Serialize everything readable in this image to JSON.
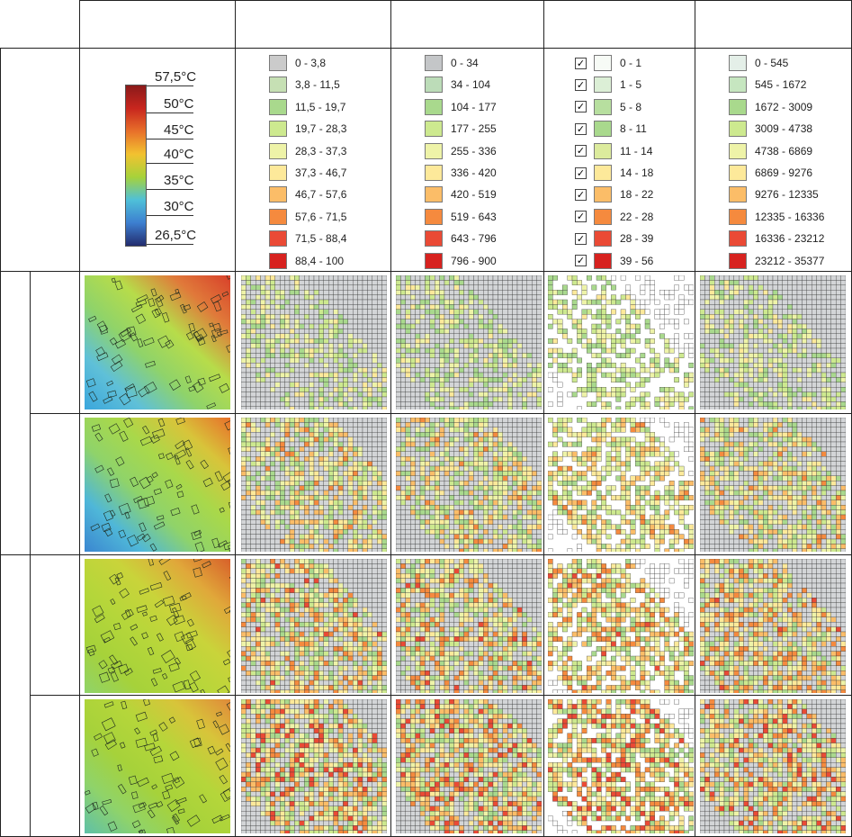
{
  "colorbar": {
    "labels": [
      "57,5°C",
      "50°C",
      "45°C",
      "40°C",
      "35°C",
      "30°C",
      "26,5°C"
    ],
    "colors": [
      "#8b1a1a",
      "#c8261e",
      "#e8702a",
      "#f2c230",
      "#a6d23a",
      "#4fc0d8",
      "#3d7fd0",
      "#232c6e"
    ]
  },
  "legends": [
    {
      "name": "legend-col-2",
      "checkbox": false,
      "entries": [
        {
          "label": "0 - 3,8",
          "color": "#cbcbcb"
        },
        {
          "label": "3,8 - 11,5",
          "color": "#c6e0b4"
        },
        {
          "label": "11,5 - 19,7",
          "color": "#a9d98d"
        },
        {
          "label": "19,7 - 28,3",
          "color": "#cde98f"
        },
        {
          "label": "28,3 - 37,3",
          "color": "#eef3a8"
        },
        {
          "label": "37,3 - 46,7",
          "color": "#fde99a"
        },
        {
          "label": "46,7 - 57,6",
          "color": "#fbbd68"
        },
        {
          "label": "57,6 - 71,5",
          "color": "#f58a3e"
        },
        {
          "label": "71,5 - 88,4",
          "color": "#ea4a35"
        },
        {
          "label": "88,4 - 100",
          "color": "#d7221f"
        }
      ]
    },
    {
      "name": "legend-col-3",
      "checkbox": false,
      "entries": [
        {
          "label": "0 - 34",
          "color": "#c4c6c8"
        },
        {
          "label": "34 - 104",
          "color": "#bcdcb8"
        },
        {
          "label": "104 - 177",
          "color": "#a9d98d"
        },
        {
          "label": "177 - 255",
          "color": "#cde98f"
        },
        {
          "label": "255 - 336",
          "color": "#eef3a8"
        },
        {
          "label": "336 - 420",
          "color": "#fde99a"
        },
        {
          "label": "420 - 519",
          "color": "#fbbd68"
        },
        {
          "label": "519 - 643",
          "color": "#f58a3e"
        },
        {
          "label": "643 - 796",
          "color": "#ea4a35"
        },
        {
          "label": "796 - 900",
          "color": "#d7221f"
        }
      ]
    },
    {
      "name": "legend-col-4",
      "checkbox": true,
      "check_glyph": "✓",
      "entries": [
        {
          "label": "0 - 1",
          "color": "#f7fbf6"
        },
        {
          "label": "1 - 5",
          "color": "#dcefd6"
        },
        {
          "label": "5 - 8",
          "color": "#b7df9f"
        },
        {
          "label": "8 - 11",
          "color": "#a9d98d"
        },
        {
          "label": "11 - 14",
          "color": "#dceb9d"
        },
        {
          "label": "14 - 18",
          "color": "#fde99a"
        },
        {
          "label": "18 - 22",
          "color": "#fbbd68"
        },
        {
          "label": "22 - 28",
          "color": "#f58a3e"
        },
        {
          "label": "28 - 39",
          "color": "#ea4a35"
        },
        {
          "label": "39 - 56",
          "color": "#d7221f"
        }
      ]
    },
    {
      "name": "legend-col-5",
      "checkbox": false,
      "entries": [
        {
          "label": "0 - 545",
          "color": "#e4efe8"
        },
        {
          "label": "545 - 1672",
          "color": "#c6e6c0"
        },
        {
          "label": "1672 - 3009",
          "color": "#a9d98d"
        },
        {
          "label": "3009 - 4738",
          "color": "#cde98f"
        },
        {
          "label": "4738 - 6869",
          "color": "#eef3a8"
        },
        {
          "label": "6869 - 9276",
          "color": "#fde99a"
        },
        {
          "label": "9276 - 12335",
          "color": "#fbbd68"
        },
        {
          "label": "12335 - 16336",
          "color": "#f58a3e"
        },
        {
          "label": "16336 - 23212",
          "color": "#ea4a35"
        },
        {
          "label": "23212 - 35377",
          "color": "#d7221f"
        }
      ]
    }
  ],
  "maps": {
    "rows": 4,
    "cols": 5,
    "types": [
      "thermal",
      "grid-gray",
      "grid-gray",
      "grid-white",
      "grid-gray"
    ],
    "row_intensity": [
      0.25,
      0.55,
      0.7,
      0.8
    ],
    "thermal_palettes": [
      [
        "#3ba6dc",
        "#5fc0d8",
        "#8fd36a",
        "#b7dc4a",
        "#e07a3a",
        "#d8402a"
      ],
      [
        "#3a86d0",
        "#4fb7d8",
        "#8fd36a",
        "#a9d84a",
        "#d8c43a",
        "#e8702a"
      ],
      [
        "#8fd36a",
        "#a6d23a",
        "#b5d63a",
        "#c9d43a",
        "#e0a83a",
        "#d8602a"
      ],
      [
        "#5fc0a8",
        "#8fd36a",
        "#a6d23a",
        "#b5d63a",
        "#d8c43a",
        "#e08a3a"
      ]
    ]
  }
}
